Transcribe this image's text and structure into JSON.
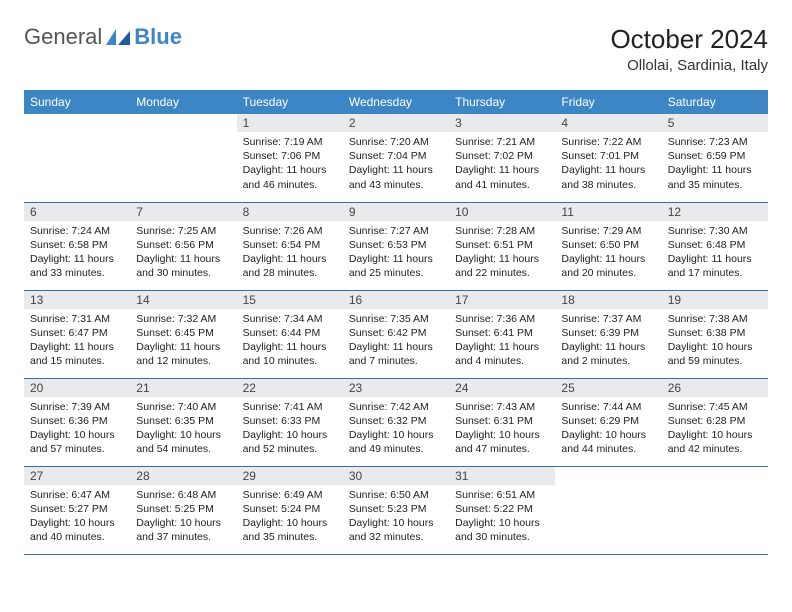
{
  "logo": {
    "text1": "General",
    "text2": "Blue"
  },
  "title": "October 2024",
  "location": "Ollolai, Sardinia, Italy",
  "colors": {
    "header_bg": "#3d86c6",
    "header_text": "#ffffff",
    "daynum_bg": "#e9eaec",
    "daynum_text": "#444444",
    "body_text": "#222222",
    "border": "#3d6c9e",
    "logo_gray": "#555555",
    "logo_blue": "#3d86c6"
  },
  "day_names": [
    "Sunday",
    "Monday",
    "Tuesday",
    "Wednesday",
    "Thursday",
    "Friday",
    "Saturday"
  ],
  "weeks": [
    [
      null,
      null,
      {
        "n": "1",
        "sunrise": "7:19 AM",
        "sunset": "7:06 PM",
        "dl": "11 hours and 46 minutes."
      },
      {
        "n": "2",
        "sunrise": "7:20 AM",
        "sunset": "7:04 PM",
        "dl": "11 hours and 43 minutes."
      },
      {
        "n": "3",
        "sunrise": "7:21 AM",
        "sunset": "7:02 PM",
        "dl": "11 hours and 41 minutes."
      },
      {
        "n": "4",
        "sunrise": "7:22 AM",
        "sunset": "7:01 PM",
        "dl": "11 hours and 38 minutes."
      },
      {
        "n": "5",
        "sunrise": "7:23 AM",
        "sunset": "6:59 PM",
        "dl": "11 hours and 35 minutes."
      }
    ],
    [
      {
        "n": "6",
        "sunrise": "7:24 AM",
        "sunset": "6:58 PM",
        "dl": "11 hours and 33 minutes."
      },
      {
        "n": "7",
        "sunrise": "7:25 AM",
        "sunset": "6:56 PM",
        "dl": "11 hours and 30 minutes."
      },
      {
        "n": "8",
        "sunrise": "7:26 AM",
        "sunset": "6:54 PM",
        "dl": "11 hours and 28 minutes."
      },
      {
        "n": "9",
        "sunrise": "7:27 AM",
        "sunset": "6:53 PM",
        "dl": "11 hours and 25 minutes."
      },
      {
        "n": "10",
        "sunrise": "7:28 AM",
        "sunset": "6:51 PM",
        "dl": "11 hours and 22 minutes."
      },
      {
        "n": "11",
        "sunrise": "7:29 AM",
        "sunset": "6:50 PM",
        "dl": "11 hours and 20 minutes."
      },
      {
        "n": "12",
        "sunrise": "7:30 AM",
        "sunset": "6:48 PM",
        "dl": "11 hours and 17 minutes."
      }
    ],
    [
      {
        "n": "13",
        "sunrise": "7:31 AM",
        "sunset": "6:47 PM",
        "dl": "11 hours and 15 minutes."
      },
      {
        "n": "14",
        "sunrise": "7:32 AM",
        "sunset": "6:45 PM",
        "dl": "11 hours and 12 minutes."
      },
      {
        "n": "15",
        "sunrise": "7:34 AM",
        "sunset": "6:44 PM",
        "dl": "11 hours and 10 minutes."
      },
      {
        "n": "16",
        "sunrise": "7:35 AM",
        "sunset": "6:42 PM",
        "dl": "11 hours and 7 minutes."
      },
      {
        "n": "17",
        "sunrise": "7:36 AM",
        "sunset": "6:41 PM",
        "dl": "11 hours and 4 minutes."
      },
      {
        "n": "18",
        "sunrise": "7:37 AM",
        "sunset": "6:39 PM",
        "dl": "11 hours and 2 minutes."
      },
      {
        "n": "19",
        "sunrise": "7:38 AM",
        "sunset": "6:38 PM",
        "dl": "10 hours and 59 minutes."
      }
    ],
    [
      {
        "n": "20",
        "sunrise": "7:39 AM",
        "sunset": "6:36 PM",
        "dl": "10 hours and 57 minutes."
      },
      {
        "n": "21",
        "sunrise": "7:40 AM",
        "sunset": "6:35 PM",
        "dl": "10 hours and 54 minutes."
      },
      {
        "n": "22",
        "sunrise": "7:41 AM",
        "sunset": "6:33 PM",
        "dl": "10 hours and 52 minutes."
      },
      {
        "n": "23",
        "sunrise": "7:42 AM",
        "sunset": "6:32 PM",
        "dl": "10 hours and 49 minutes."
      },
      {
        "n": "24",
        "sunrise": "7:43 AM",
        "sunset": "6:31 PM",
        "dl": "10 hours and 47 minutes."
      },
      {
        "n": "25",
        "sunrise": "7:44 AM",
        "sunset": "6:29 PM",
        "dl": "10 hours and 44 minutes."
      },
      {
        "n": "26",
        "sunrise": "7:45 AM",
        "sunset": "6:28 PM",
        "dl": "10 hours and 42 minutes."
      }
    ],
    [
      {
        "n": "27",
        "sunrise": "6:47 AM",
        "sunset": "5:27 PM",
        "dl": "10 hours and 40 minutes."
      },
      {
        "n": "28",
        "sunrise": "6:48 AM",
        "sunset": "5:25 PM",
        "dl": "10 hours and 37 minutes."
      },
      {
        "n": "29",
        "sunrise": "6:49 AM",
        "sunset": "5:24 PM",
        "dl": "10 hours and 35 minutes."
      },
      {
        "n": "30",
        "sunrise": "6:50 AM",
        "sunset": "5:23 PM",
        "dl": "10 hours and 32 minutes."
      },
      {
        "n": "31",
        "sunrise": "6:51 AM",
        "sunset": "5:22 PM",
        "dl": "10 hours and 30 minutes."
      },
      null,
      null
    ]
  ],
  "labels": {
    "sunrise": "Sunrise:",
    "sunset": "Sunset:",
    "daylight": "Daylight:"
  }
}
